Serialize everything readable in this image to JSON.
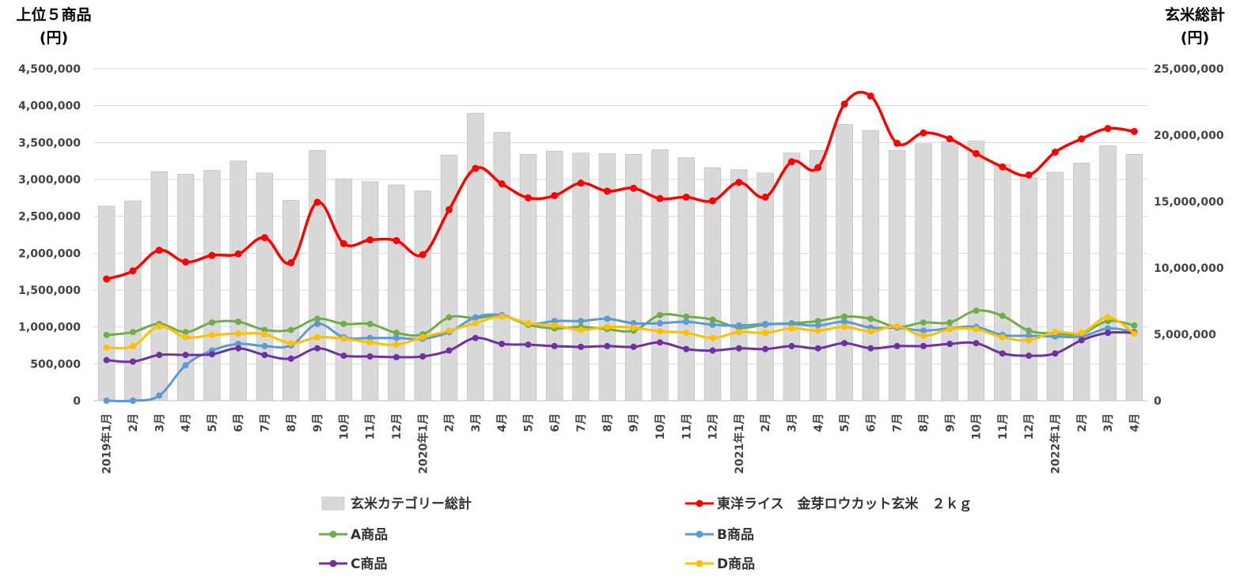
{
  "chart_data": {
    "type": "bar",
    "left_axis_title": [
      "上位５商品",
      "(円)"
    ],
    "right_axis_title": [
      "玄米総計",
      "(円)"
    ],
    "left_ylim": [
      0,
      4500000
    ],
    "right_ylim": [
      0,
      25000000
    ],
    "left_ticks": [
      "0",
      "500,000",
      "1,000,000",
      "1,500,000",
      "2,000,000",
      "2,500,000",
      "3,000,000",
      "3,500,000",
      "4,000,000",
      "4,500,000"
    ],
    "right_ticks": [
      "0",
      "5,000,000",
      "10,000,000",
      "15,000,000",
      "20,000,000",
      "25,000,000"
    ],
    "grid": true,
    "legend_placement": "bottom",
    "categories": [
      "2019年1月",
      "2月",
      "3月",
      "4月",
      "5月",
      "6月",
      "7月",
      "8月",
      "9月",
      "10月",
      "11月",
      "12月",
      "2020年1月",
      "2月",
      "3月",
      "4月",
      "5月",
      "6月",
      "7月",
      "8月",
      "9月",
      "10月",
      "11月",
      "12月",
      "2021年1月",
      "2月",
      "3月",
      "4月",
      "5月",
      "6月",
      "7月",
      "8月",
      "9月",
      "10月",
      "11月",
      "12月",
      "2022年1月",
      "2月",
      "3月",
      "4月"
    ],
    "bar_series": {
      "name": "玄米カテゴリー総計",
      "axis": "right",
      "color": "#d9d9d9",
      "values": [
        14650000,
        15050000,
        17250000,
        17050000,
        17350000,
        18050000,
        17150000,
        15100000,
        18850000,
        16700000,
        16500000,
        16250000,
        15800000,
        18500000,
        21650000,
        20200000,
        18550000,
        18800000,
        18650000,
        18600000,
        18550000,
        18900000,
        18300000,
        17550000,
        17400000,
        17150000,
        18650000,
        18850000,
        20800000,
        20350000,
        18850000,
        19350000,
        19500000,
        19550000,
        17800000,
        16800000,
        17200000,
        17900000,
        19200000,
        18550000
      ]
    },
    "series": [
      {
        "name": "東洋ライス　金芽ロウカット玄米　２ｋｇ",
        "color": "#ff0000",
        "axis": "left",
        "values": [
          1650000,
          1760000,
          2040000,
          1880000,
          1970000,
          1990000,
          2210000,
          1870000,
          2690000,
          2130000,
          2180000,
          2170000,
          1980000,
          2590000,
          3150000,
          2940000,
          2750000,
          2780000,
          2950000,
          2840000,
          2880000,
          2740000,
          2760000,
          2710000,
          2960000,
          2760000,
          3240000,
          3160000,
          4020000,
          4130000,
          3490000,
          3630000,
          3550000,
          3350000,
          3170000,
          3060000,
          3370000,
          3550000,
          3690000,
          3650000
        ]
      },
      {
        "name": "A商品",
        "color": "#70ad47",
        "axis": "left",
        "values": [
          890000,
          930000,
          1040000,
          930000,
          1060000,
          1070000,
          960000,
          960000,
          1110000,
          1040000,
          1040000,
          920000,
          900000,
          1130000,
          1120000,
          1150000,
          1030000,
          980000,
          1000000,
          970000,
          950000,
          1160000,
          1140000,
          1100000,
          990000,
          1030000,
          1050000,
          1080000,
          1140000,
          1110000,
          1000000,
          1060000,
          1060000,
          1220000,
          1150000,
          950000,
          910000,
          910000,
          1080000,
          1020000
        ]
      },
      {
        "name": "B商品",
        "color": "#5b9bd5",
        "axis": "left",
        "values": [
          0,
          0,
          70000,
          480000,
          680000,
          770000,
          740000,
          750000,
          1040000,
          860000,
          850000,
          850000,
          840000,
          930000,
          1130000,
          1160000,
          1040000,
          1080000,
          1080000,
          1110000,
          1050000,
          1050000,
          1070000,
          1030000,
          1020000,
          1040000,
          1040000,
          1020000,
          1070000,
          990000,
          990000,
          950000,
          980000,
          1000000,
          890000,
          880000,
          870000,
          870000,
          980000,
          930000
        ]
      },
      {
        "name": "C商品",
        "color": "#7030a0",
        "axis": "left",
        "values": [
          550000,
          530000,
          620000,
          620000,
          630000,
          710000,
          620000,
          570000,
          710000,
          610000,
          600000,
          590000,
          600000,
          680000,
          850000,
          770000,
          760000,
          740000,
          730000,
          740000,
          730000,
          790000,
          700000,
          680000,
          710000,
          700000,
          740000,
          710000,
          780000,
          710000,
          740000,
          740000,
          770000,
          780000,
          640000,
          610000,
          640000,
          820000,
          920000,
          920000
        ]
      },
      {
        "name": "D商品",
        "color": "#ffc000",
        "axis": "left",
        "values": [
          720000,
          740000,
          1010000,
          860000,
          890000,
          910000,
          900000,
          780000,
          860000,
          840000,
          790000,
          760000,
          860000,
          950000,
          1050000,
          1140000,
          1050000,
          1020000,
          960000,
          1000000,
          990000,
          940000,
          920000,
          850000,
          930000,
          920000,
          980000,
          950000,
          1000000,
          940000,
          1010000,
          880000,
          970000,
          970000,
          860000,
          820000,
          930000,
          920000,
          1130000,
          910000
        ]
      }
    ]
  }
}
